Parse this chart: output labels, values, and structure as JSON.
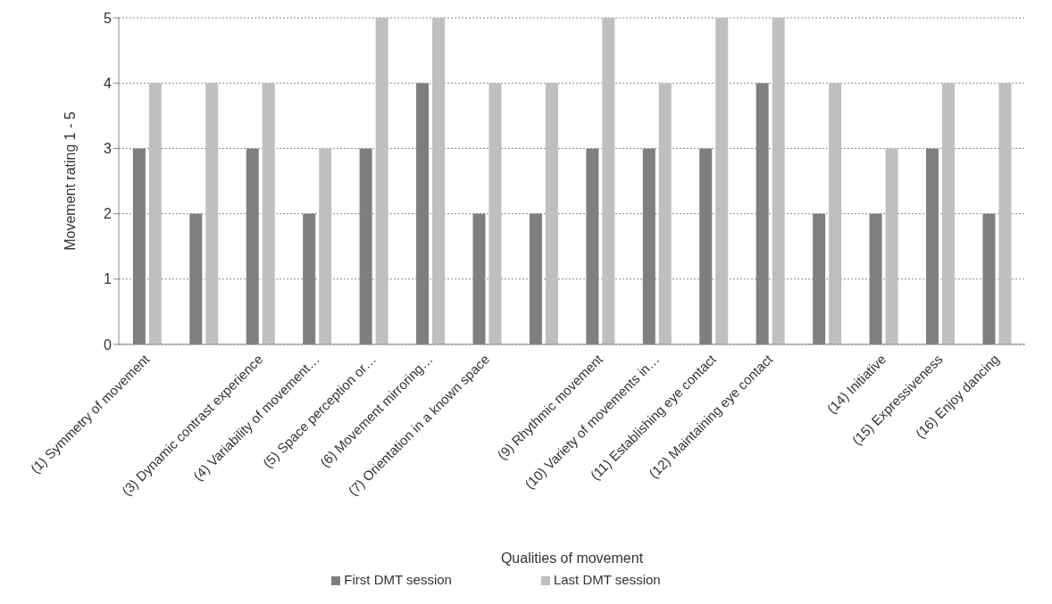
{
  "chart_data": {
    "type": "bar",
    "xlabel": "Qualities of movement",
    "ylabel": "Movement rating 1 - 5",
    "categories": [
      "(1) Symmetry of movement",
      null,
      "(3) Dynamic contrast experience",
      "(4) Variability of movement…",
      "(5) Space perception or…",
      "(6) Movement mirroring…",
      "(7) Orientation in a known space",
      null,
      "(9) Rhythmic movement",
      "(10) Variety of movements in…",
      "(11) Establishing eye contact",
      "(12) Maintaining eye contact",
      null,
      "(14) Initiative",
      "(15) Expressiveness",
      "(16) Enjoy dancing"
    ],
    "series": [
      {
        "name": "First DMT session",
        "color": "#7f7f7f",
        "values": [
          3,
          2,
          3,
          2,
          3,
          4,
          2,
          2,
          3,
          3,
          3,
          4,
          2,
          2,
          3,
          2
        ]
      },
      {
        "name": "Last DMT session",
        "color": "#bfbfbf",
        "values": [
          4,
          4,
          4,
          3,
          5,
          5,
          4,
          4,
          5,
          4,
          5,
          5,
          4,
          3,
          4,
          4
        ]
      }
    ],
    "ylim": [
      0,
      5
    ],
    "yticks": [
      0,
      1,
      2,
      3,
      4,
      5
    ],
    "grid": "y",
    "legend": "bottom"
  }
}
